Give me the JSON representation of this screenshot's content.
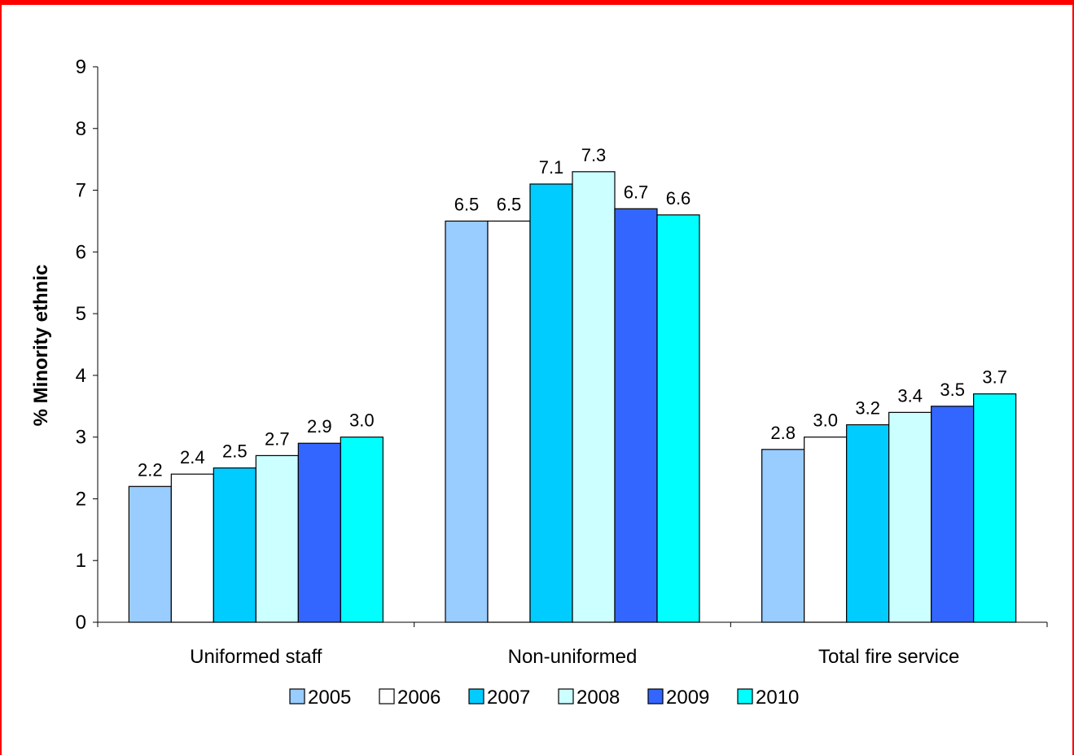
{
  "chart_data": {
    "type": "bar",
    "title": "",
    "xlabel": "",
    "ylabel": "% Minority ethnic",
    "ylim": [
      0,
      9
    ],
    "yticks": [
      0,
      1,
      2,
      3,
      4,
      5,
      6,
      7,
      8,
      9
    ],
    "grid": false,
    "legend_position": "bottom",
    "categories": [
      "Uniformed staff",
      "Non-uniformed",
      "Total fire service"
    ],
    "series": [
      {
        "name": "2005",
        "color": "#99ccff",
        "values": [
          2.2,
          6.5,
          2.8
        ],
        "labels": [
          "2.2",
          "6.5",
          "2.8"
        ]
      },
      {
        "name": "2006",
        "color": "#ffffff",
        "values": [
          2.4,
          6.5,
          3.0
        ],
        "labels": [
          "2.4",
          "6.5",
          "3.0"
        ]
      },
      {
        "name": "2007",
        "color": "#00ccff",
        "values": [
          2.5,
          7.1,
          3.2
        ],
        "labels": [
          "2.5",
          "7.1",
          "3.2"
        ]
      },
      {
        "name": "2008",
        "color": "#ccffff",
        "values": [
          2.7,
          7.3,
          3.4
        ],
        "labels": [
          "2.7",
          "7.3",
          "3.4"
        ]
      },
      {
        "name": "2009",
        "color": "#3366ff",
        "values": [
          2.9,
          6.7,
          3.5
        ],
        "labels": [
          "2.9",
          "6.7",
          "3.5"
        ]
      },
      {
        "name": "2010",
        "color": "#00ffff",
        "values": [
          3.0,
          6.6,
          3.7
        ],
        "labels": [
          "3.0",
          "6.6",
          "3.7"
        ]
      }
    ]
  },
  "colors": {
    "frame_border": "#ff0000"
  }
}
